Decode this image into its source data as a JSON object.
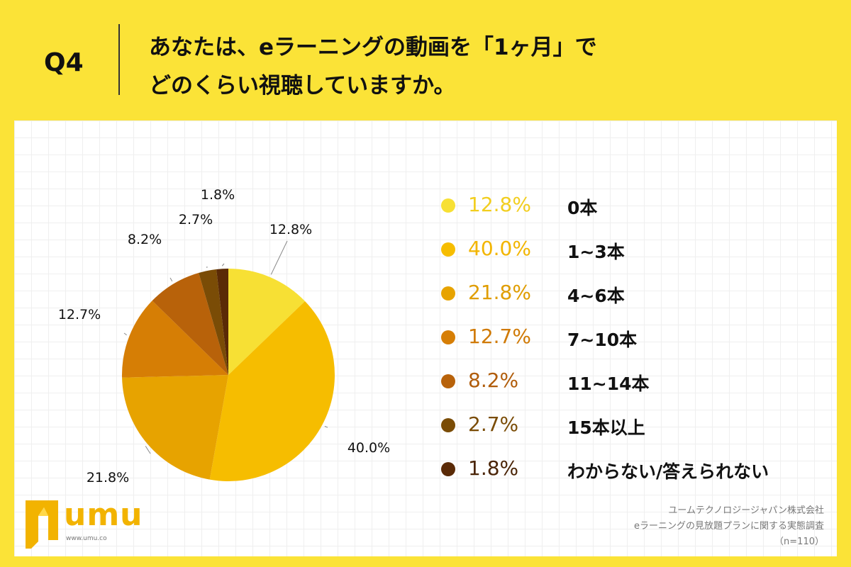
{
  "header": {
    "q_label": "Q4",
    "title_line1": "あなたは、eラーニングの動画を「1ヶ月」で",
    "title_line2": "どのくらい視聴していますか。"
  },
  "chart_data": {
    "type": "pie",
    "title": "",
    "slices": [
      {
        "label": "0本",
        "value": 12.8,
        "pct_text": "12.8%",
        "color": "#F7E034",
        "text_color": "#F2CE1F"
      },
      {
        "label": "1~3本",
        "value": 40.0,
        "pct_text": "40.0%",
        "color": "#F6BD00",
        "text_color": "#F2B500"
      },
      {
        "label": "4~6本",
        "value": 21.8,
        "pct_text": "21.8%",
        "color": "#E7A300",
        "text_color": "#E09D00"
      },
      {
        "label": "7~10本",
        "value": 12.7,
        "pct_text": "12.7%",
        "color": "#D67E05",
        "text_color": "#D07A05"
      },
      {
        "label": "11~14本",
        "value": 8.2,
        "pct_text": "8.2%",
        "color": "#B8620A",
        "text_color": "#B05C0A"
      },
      {
        "label": "15本以上",
        "value": 2.7,
        "pct_text": "2.7%",
        "color": "#7A4C06",
        "text_color": "#7A4C06"
      },
      {
        "label": "わからない/答えられない",
        "value": 1.8,
        "pct_text": "1.8%",
        "color": "#5A2A06",
        "text_color": "#4A2406"
      }
    ]
  },
  "brand": {
    "logo_text": "umu",
    "url": "www.umu.co"
  },
  "source": {
    "line1": "ユームテクノロジージャパン株式会社",
    "line2": "eラーニングの見放題プランに関する実態調査",
    "line3": "（n=110）"
  }
}
